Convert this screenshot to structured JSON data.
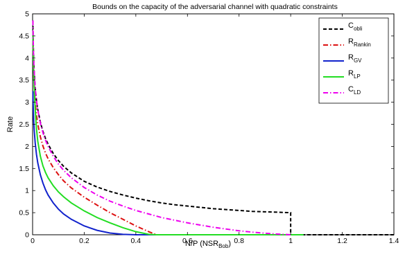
{
  "chart_data": {
    "type": "line",
    "title": "Bounds on the capacity of the adversarial channel with quadratic constraints",
    "xlabel": "N/P  (NSR",
    "xlabel_sub": "Bob",
    "xlabel_close": ")",
    "ylabel": "Rate",
    "xlim": [
      0,
      1.4
    ],
    "ylim": [
      0,
      5
    ],
    "xticks": [
      0,
      0.2,
      0.4,
      0.6,
      0.8,
      1,
      1.2,
      1.4
    ],
    "xtick_labels": [
      "0",
      "0.2",
      "0.4",
      "0.6",
      "0.8",
      "1",
      "1.2",
      "1.4"
    ],
    "yticks": [
      0,
      0.5,
      1,
      1.5,
      2,
      2.5,
      3,
      3.5,
      4,
      4.5,
      5
    ],
    "ytick_labels": [
      "0",
      "0.5",
      "1",
      "1.5",
      "2",
      "2.5",
      "3",
      "3.5",
      "4",
      "4.5",
      "5"
    ],
    "grid": false,
    "legend_position": "top-right",
    "series": [
      {
        "name": "C",
        "name_sub": "obli",
        "color": "#000000",
        "dash": "dashed",
        "x": [
          0.0012,
          0.002,
          0.004,
          0.006,
          0.01,
          0.015,
          0.02,
          0.03,
          0.04,
          0.05,
          0.06,
          0.08,
          0.1,
          0.12,
          0.15,
          0.2,
          0.25,
          0.3,
          0.35,
          0.4,
          0.45,
          0.5,
          0.55,
          0.6,
          0.65,
          0.7,
          0.75,
          0.8,
          0.85,
          0.9,
          0.95,
          0.999,
          1.0,
          1.0,
          1.4
        ],
        "y": [
          4.85,
          4.48,
          3.99,
          3.7,
          3.33,
          3.04,
          2.84,
          2.55,
          2.34,
          2.18,
          2.05,
          1.84,
          1.68,
          1.55,
          1.4,
          1.21,
          1.08,
          0.98,
          0.9,
          0.83,
          0.77,
          0.72,
          0.68,
          0.65,
          0.62,
          0.59,
          0.57,
          0.55,
          0.53,
          0.52,
          0.51,
          0.5,
          0.5,
          0.0,
          0.0
        ]
      },
      {
        "name": "R",
        "name_sub": "Rankin",
        "color": "#dd1111",
        "dash": "dashdot",
        "x": [
          0.0012,
          0.002,
          0.004,
          0.006,
          0.01,
          0.015,
          0.02,
          0.03,
          0.04,
          0.05,
          0.06,
          0.08,
          0.1,
          0.12,
          0.15,
          0.2,
          0.25,
          0.3,
          0.35,
          0.4,
          0.45,
          0.48,
          0.5
        ],
        "y": [
          4.52,
          4.15,
          3.66,
          3.37,
          3.0,
          2.71,
          2.51,
          2.22,
          2.01,
          1.85,
          1.72,
          1.52,
          1.36,
          1.22,
          1.06,
          0.85,
          0.67,
          0.5,
          0.35,
          0.2,
          0.07,
          0.0,
          0.0
        ]
      },
      {
        "name": "R",
        "name_sub": "GV",
        "color": "#1122cc",
        "dash": "solid",
        "x": [
          0.0012,
          0.002,
          0.004,
          0.006,
          0.01,
          0.015,
          0.02,
          0.03,
          0.04,
          0.05,
          0.06,
          0.08,
          0.1,
          0.12,
          0.15,
          0.2,
          0.25,
          0.3,
          0.35,
          0.4,
          0.45,
          0.5,
          1.05
        ],
        "y": [
          3.25,
          2.99,
          2.62,
          2.39,
          2.08,
          1.82,
          1.63,
          1.36,
          1.17,
          1.02,
          0.9,
          0.72,
          0.58,
          0.47,
          0.35,
          0.2,
          0.1,
          0.04,
          0.01,
          0.0,
          0.0,
          0.0,
          0.0
        ]
      },
      {
        "name": "R",
        "name_sub": "LP",
        "color": "#22dd22",
        "dash": "solid",
        "x": [
          0.0012,
          0.002,
          0.004,
          0.006,
          0.01,
          0.015,
          0.02,
          0.03,
          0.04,
          0.05,
          0.06,
          0.08,
          0.1,
          0.12,
          0.15,
          0.2,
          0.25,
          0.3,
          0.35,
          0.4,
          0.45,
          0.48,
          1.05
        ],
        "y": [
          4.6,
          4.2,
          3.7,
          3.35,
          2.85,
          2.4,
          2.12,
          1.78,
          1.56,
          1.41,
          1.29,
          1.11,
          0.97,
          0.86,
          0.72,
          0.54,
          0.39,
          0.27,
          0.16,
          0.07,
          0.01,
          0.0,
          0.0
        ]
      },
      {
        "name": "C",
        "name_sub": "LD",
        "color": "#ee00ee",
        "dash": "dashdot",
        "x": [
          0.0012,
          0.002,
          0.004,
          0.006,
          0.01,
          0.015,
          0.02,
          0.03,
          0.04,
          0.05,
          0.06,
          0.08,
          0.1,
          0.12,
          0.15,
          0.2,
          0.25,
          0.3,
          0.35,
          0.4,
          0.45,
          0.5,
          0.55,
          0.6,
          0.65,
          0.7,
          0.75,
          0.8,
          0.85,
          0.9,
          0.95,
          0.99,
          1.0
        ],
        "y": [
          4.85,
          4.48,
          3.99,
          3.7,
          3.33,
          3.04,
          2.83,
          2.53,
          2.31,
          2.14,
          2.0,
          1.78,
          1.6,
          1.46,
          1.29,
          1.07,
          0.9,
          0.76,
          0.65,
          0.55,
          0.47,
          0.39,
          0.33,
          0.27,
          0.22,
          0.17,
          0.13,
          0.09,
          0.06,
          0.035,
          0.015,
          0.003,
          0.0
        ]
      }
    ]
  }
}
